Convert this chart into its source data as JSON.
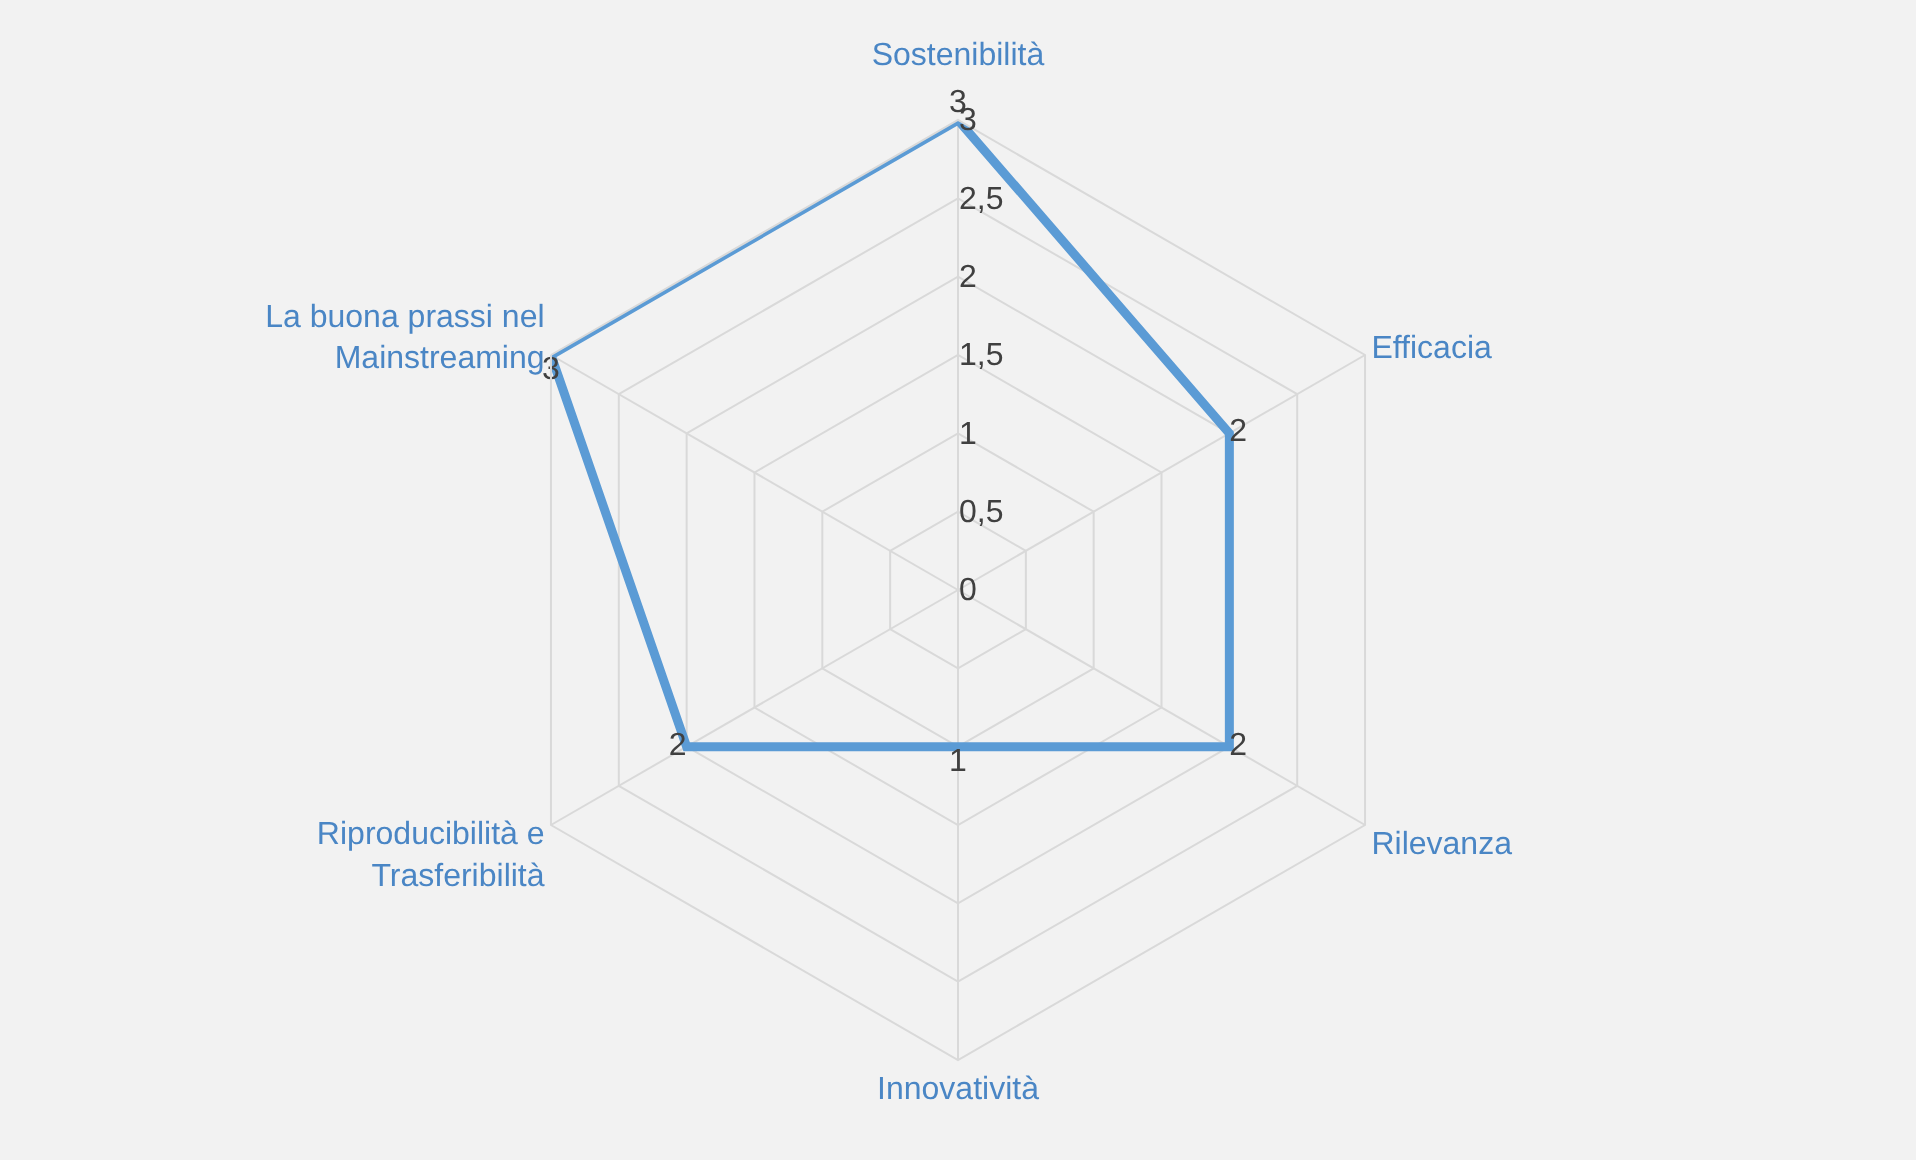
{
  "chart_data": {
    "type": "radar",
    "categories": [
      "Sostenibilità",
      "Efficacia",
      "Rilevanza",
      "Innovatività",
      "Riproducibilità e Trasferibilità",
      "La buona prassi nel Mainstreaming"
    ],
    "series": [
      {
        "color": "#5b9bd5",
        "values": [
          3,
          2,
          2,
          1,
          2,
          3
        ]
      }
    ],
    "ylim": [
      0,
      3
    ],
    "yticks": [
      0,
      {
        "value": 0.5,
        "label": "0,5"
      },
      1,
      {
        "value": 1.5,
        "label": "1,5"
      },
      2,
      {
        "value": 2.5,
        "label": "2,5"
      },
      3
    ],
    "data_labels": true,
    "grid": true,
    "marker": "none",
    "line_style": "solid"
  }
}
